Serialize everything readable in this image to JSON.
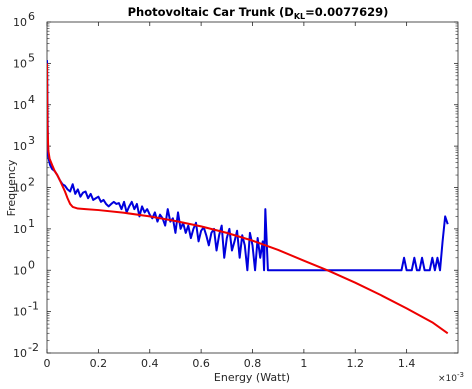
{
  "chart_data": {
    "type": "line",
    "title": {
      "prefix": "Photovoltaic Car Trunk (D",
      "subscript": "KL",
      "suffix": "=0.0077629)"
    },
    "xlabel": "Energy (Watt)",
    "ylabel": "Frequency",
    "x_multiplier": {
      "base": "×10",
      "exponent": "-3"
    },
    "xlim": [
      0,
      1.6
    ],
    "ylim": [
      0.01,
      1000000
    ],
    "y_scale": "log",
    "grid": false,
    "x_ticks": [
      0,
      0.2,
      0.4,
      0.6,
      0.8,
      1.0,
      1.2,
      1.4
    ],
    "x_tick_labels": [
      "0",
      "0.2",
      "0.4",
      "0.6",
      "0.8",
      "1",
      "1.2",
      "1.4"
    ],
    "y_ticks": [
      0.01,
      0.1,
      1,
      10,
      100,
      1000,
      10000,
      100000,
      1000000
    ],
    "y_tick_labels": [
      {
        "base": "10",
        "exp": "-2"
      },
      {
        "base": "10",
        "exp": "-1"
      },
      {
        "base": "10",
        "exp": "0"
      },
      {
        "base": "10",
        "exp": "1"
      },
      {
        "base": "10",
        "exp": "2"
      },
      {
        "base": "10",
        "exp": "3"
      },
      {
        "base": "10",
        "exp": "4"
      },
      {
        "base": "10",
        "exp": "5"
      },
      {
        "base": "10",
        "exp": "6"
      }
    ],
    "series": [
      {
        "color": "#0000dd",
        "x": [
          0.0,
          0.004,
          0.008,
          0.012,
          0.02,
          0.03,
          0.04,
          0.05,
          0.06,
          0.07,
          0.08,
          0.09,
          0.1,
          0.11,
          0.12,
          0.13,
          0.14,
          0.15,
          0.16,
          0.17,
          0.18,
          0.19,
          0.2,
          0.21,
          0.22,
          0.23,
          0.24,
          0.25,
          0.26,
          0.27,
          0.28,
          0.29,
          0.3,
          0.31,
          0.32,
          0.33,
          0.34,
          0.35,
          0.36,
          0.37,
          0.38,
          0.39,
          0.4,
          0.41,
          0.42,
          0.43,
          0.44,
          0.45,
          0.46,
          0.47,
          0.48,
          0.49,
          0.5,
          0.51,
          0.52,
          0.53,
          0.54,
          0.55,
          0.56,
          0.57,
          0.58,
          0.59,
          0.6,
          0.61,
          0.62,
          0.63,
          0.64,
          0.65,
          0.66,
          0.67,
          0.68,
          0.69,
          0.7,
          0.71,
          0.72,
          0.73,
          0.74,
          0.75,
          0.76,
          0.77,
          0.78,
          0.79,
          0.8,
          0.81,
          0.82,
          0.83,
          0.84,
          0.845,
          0.85,
          0.86,
          0.87,
          0.9,
          1.0,
          1.1,
          1.2,
          1.3,
          1.37,
          1.38,
          1.39,
          1.4,
          1.41,
          1.42,
          1.43,
          1.44,
          1.45,
          1.46,
          1.47,
          1.48,
          1.49,
          1.5,
          1.51,
          1.52,
          1.53,
          1.54,
          1.55,
          1.56
        ],
        "y": [
          120000,
          600,
          450,
          350,
          280,
          250,
          200,
          150,
          120,
          110,
          90,
          80,
          120,
          70,
          90,
          60,
          75,
          80,
          55,
          70,
          50,
          55,
          60,
          45,
          50,
          40,
          35,
          40,
          45,
          40,
          42,
          30,
          45,
          25,
          35,
          45,
          30,
          40,
          20,
          35,
          25,
          30,
          22,
          18,
          25,
          15,
          22,
          18,
          12,
          30,
          15,
          18,
          8,
          25,
          10,
          14,
          8,
          12,
          6,
          10,
          14,
          5,
          9,
          11,
          7,
          4,
          8,
          10,
          3,
          7,
          12,
          2,
          6,
          10,
          3,
          5,
          9,
          2,
          7,
          4,
          1,
          8,
          4,
          1,
          6,
          2,
          5,
          1,
          30,
          1,
          1,
          1,
          1,
          1,
          1,
          1,
          1,
          1,
          2,
          1,
          1,
          1,
          2,
          1,
          1,
          2,
          1,
          1,
          1,
          2,
          1,
          2,
          1,
          5,
          20,
          13
        ]
      },
      {
        "color": "#ee0000",
        "x": [
          0.0,
          0.002,
          0.005,
          0.01,
          0.02,
          0.03,
          0.04,
          0.05,
          0.06,
          0.07,
          0.08,
          0.09,
          0.1,
          0.12,
          0.15,
          0.2,
          0.3,
          0.4,
          0.5,
          0.6,
          0.7,
          0.8,
          0.9,
          1.0,
          1.1,
          1.2,
          1.3,
          1.4,
          1.5,
          1.56
        ],
        "y": [
          100000,
          3000,
          800,
          500,
          350,
          250,
          200,
          150,
          110,
          80,
          55,
          40,
          34,
          31,
          30,
          28.5,
          24.5,
          20,
          15.5,
          11.5,
          8,
          5.2,
          3.1,
          1.7,
          0.95,
          0.5,
          0.25,
          0.12,
          0.055,
          0.03
        ]
      }
    ]
  }
}
